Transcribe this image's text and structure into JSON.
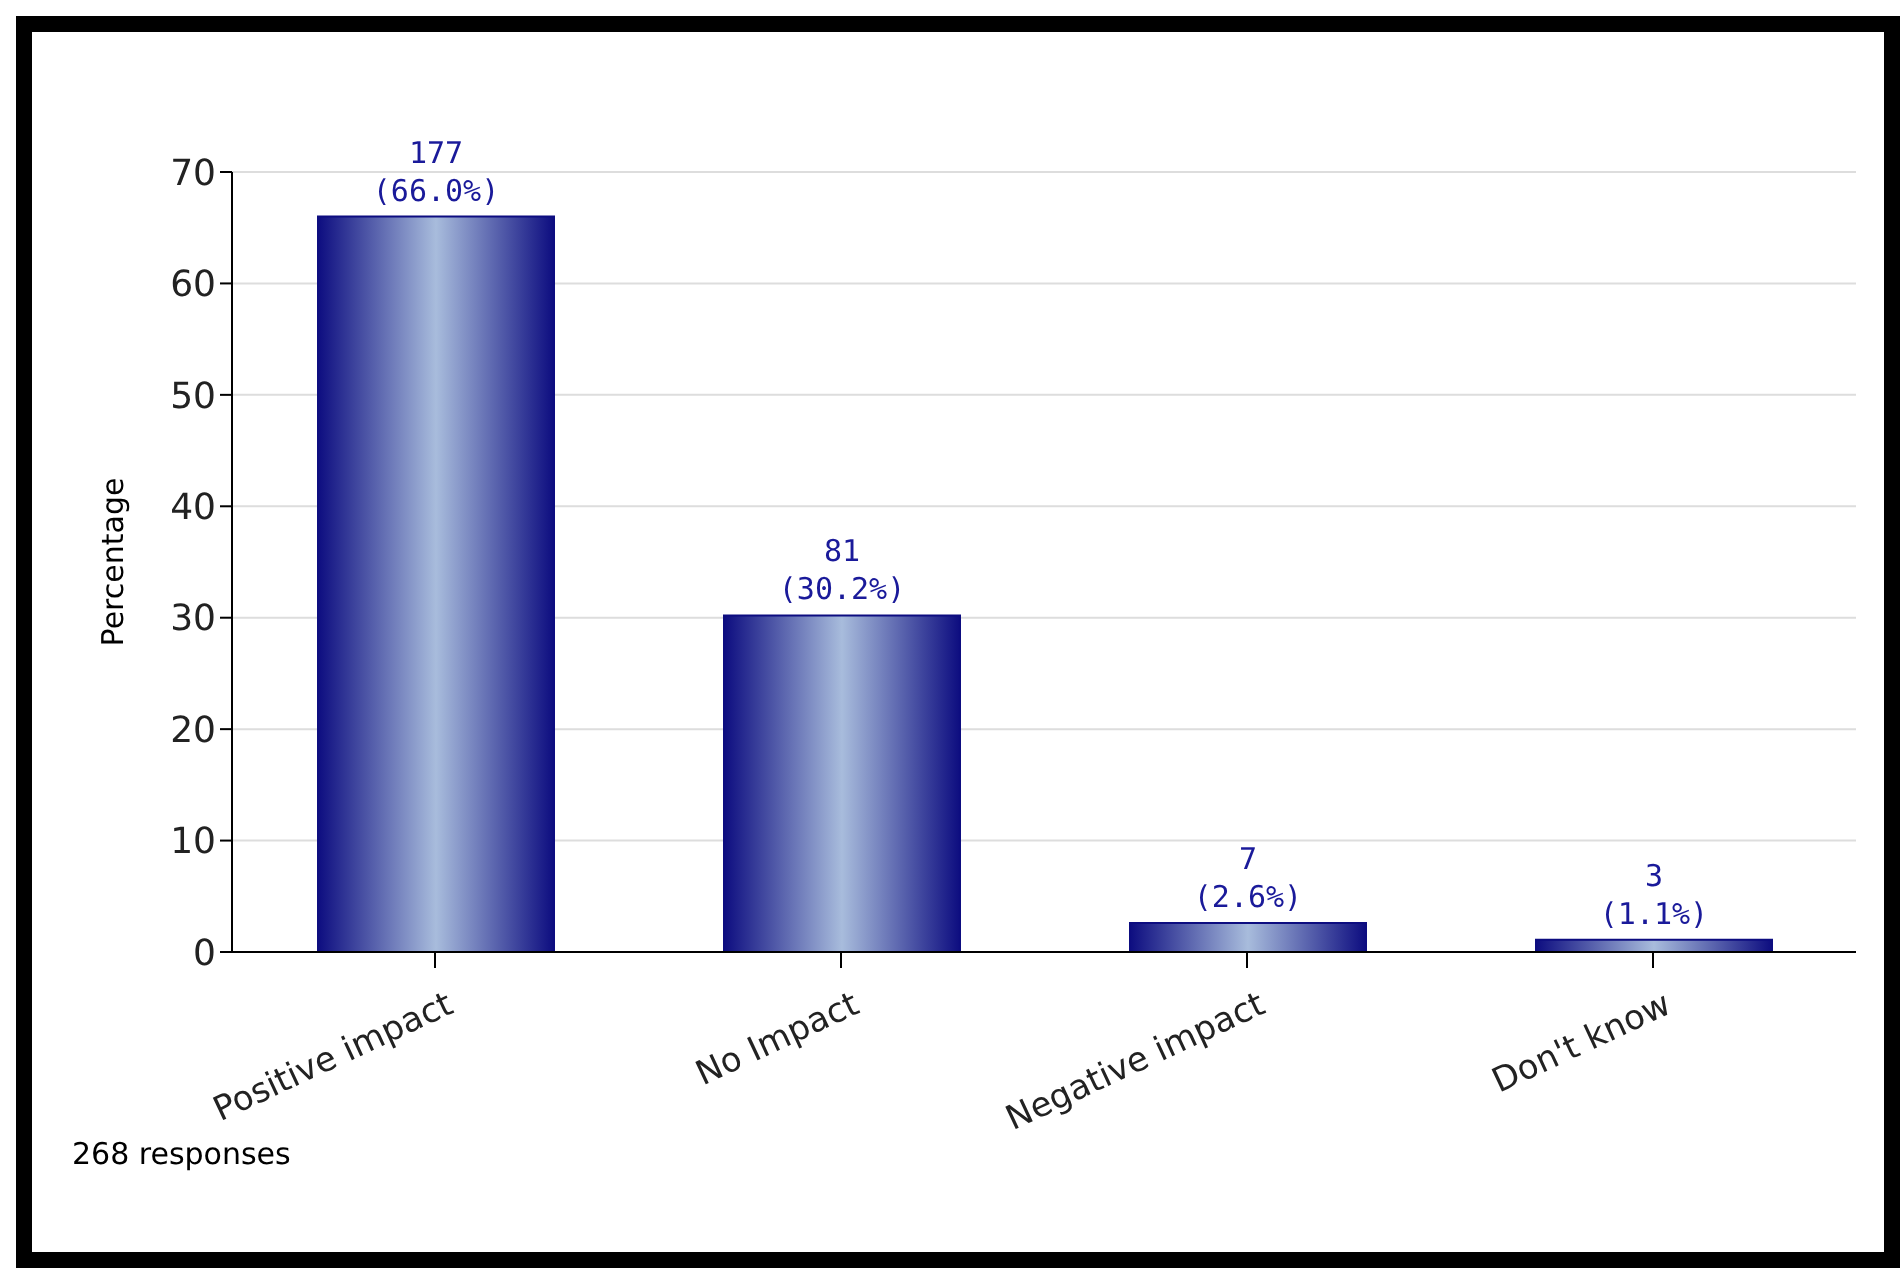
{
  "chart_data": {
    "type": "bar",
    "ylabel": "Percentage",
    "categories": [
      "Positive impact",
      "No Impact",
      "Negative impact",
      "Don't know"
    ],
    "values": [
      66.0,
      30.2,
      2.6,
      1.1
    ],
    "color": "#0d0d80",
    "value_labels": [
      "177\n(66.0%)",
      "81\n(30.2%)",
      "7\n(2.6%)",
      "3\n(1.1%)"
    ],
    "ylim": [
      0,
      70
    ],
    "yticks": [
      0,
      10,
      20,
      30,
      40,
      50,
      60,
      70
    ],
    "grid": "y",
    "annotations": [
      "268 responses"
    ]
  }
}
